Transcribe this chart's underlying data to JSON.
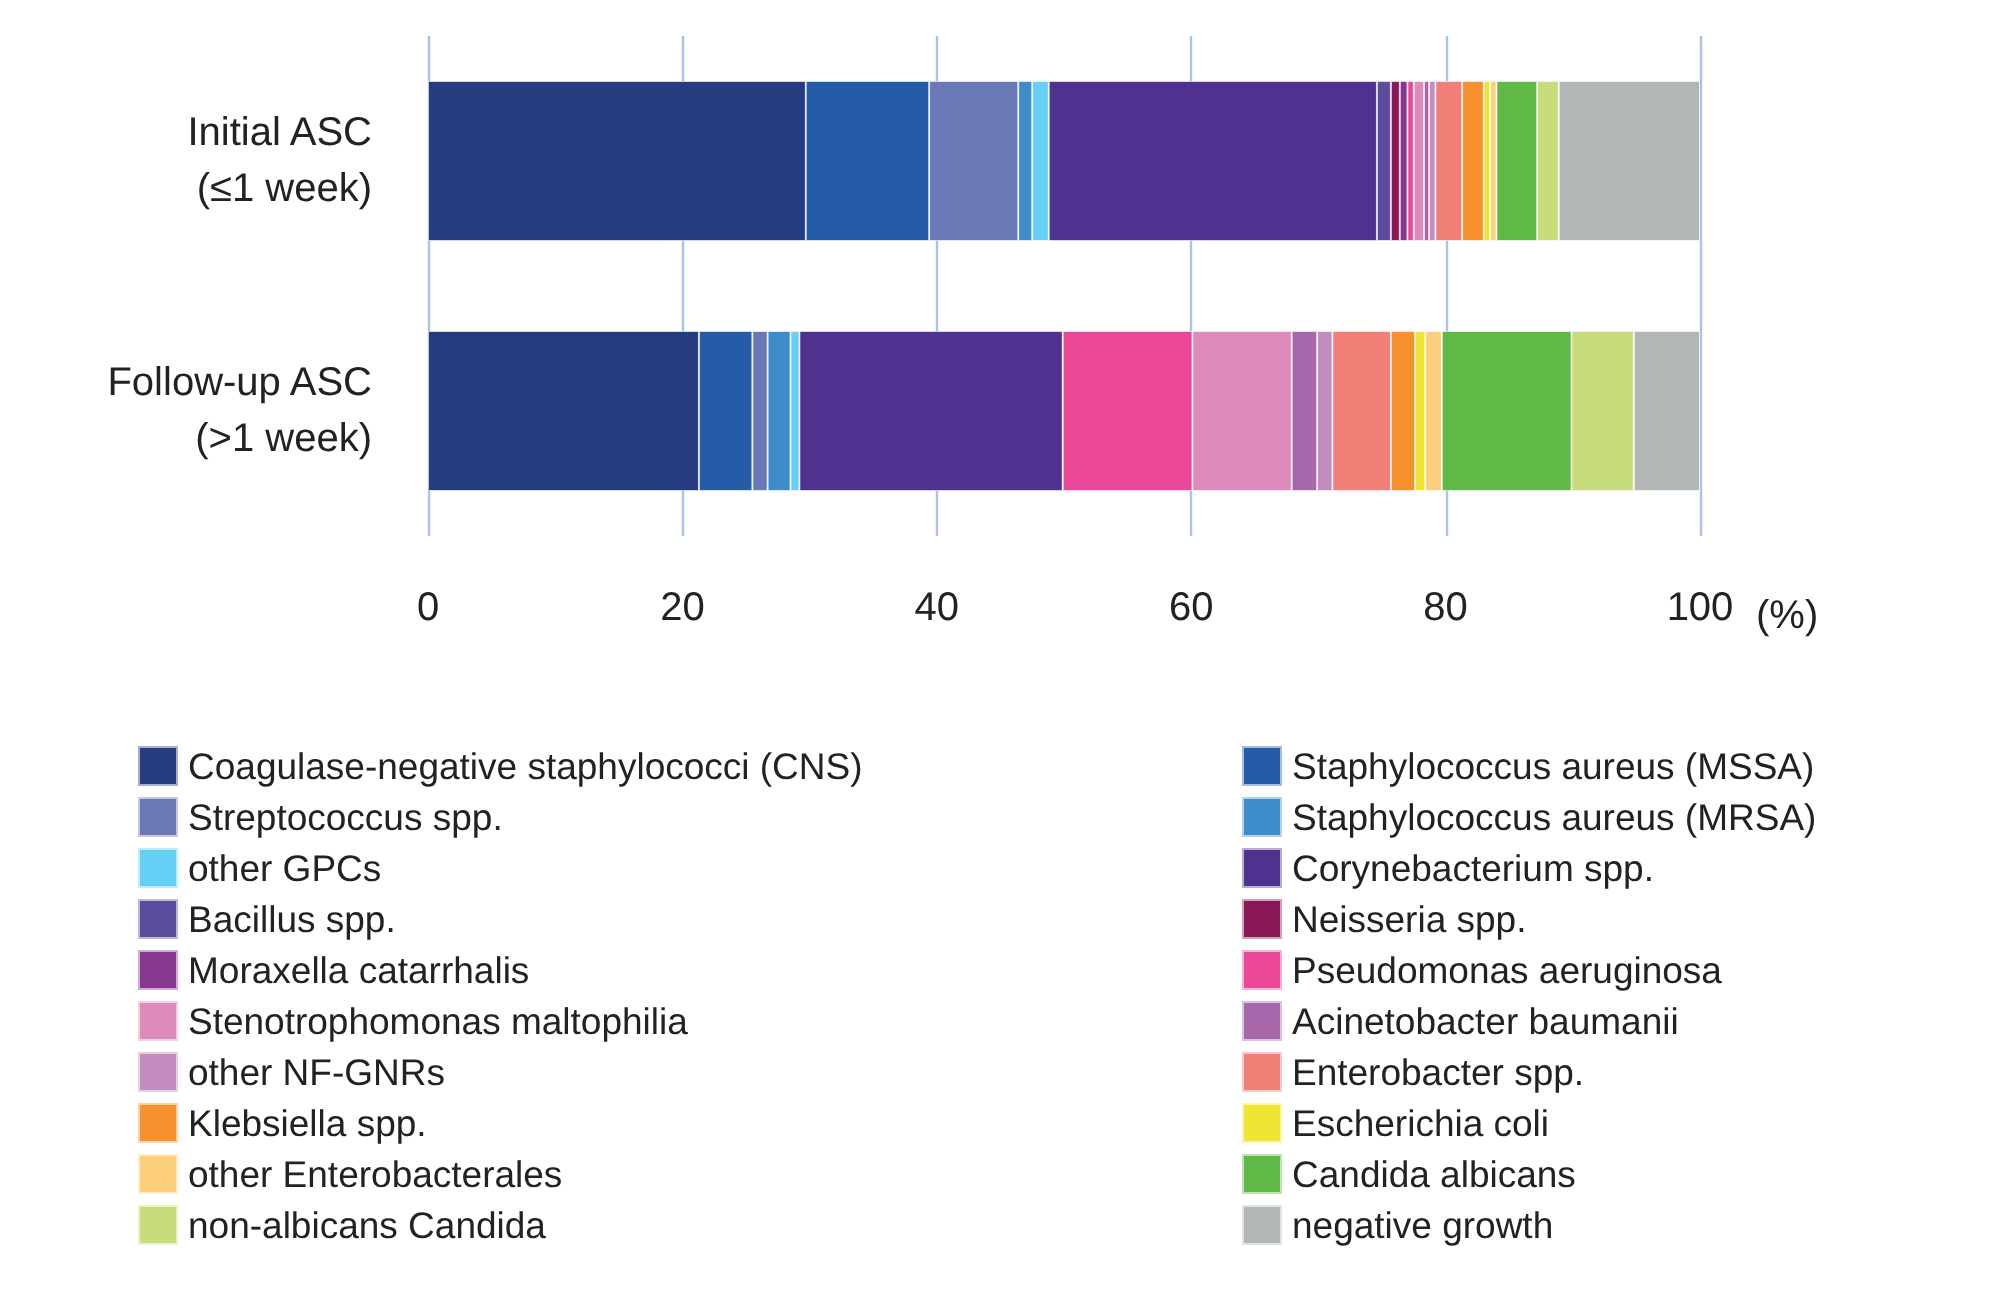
{
  "chart_data": {
    "type": "bar",
    "orientation": "horizontal",
    "stacked": true,
    "categories": [
      "Initial ASC\n(≤1 week)",
      "Follow-up ASC\n(>1 week)"
    ],
    "xlabel": "(%)",
    "xlim": [
      0,
      100
    ],
    "xticks": [
      0,
      20,
      40,
      60,
      80,
      100
    ],
    "grid": "x",
    "legend": "bottom",
    "series": [
      {
        "name": "Coagulase-negative staphylococci (CNS)",
        "color": "#253c80",
        "values": [
          29.7,
          21.3
        ]
      },
      {
        "name": "Staphylococcus aureus (MSSA)",
        "color": "#255ca8",
        "values": [
          9.7,
          4.2
        ]
      },
      {
        "name": "Streptococcus spp.",
        "color": "#6a78b8",
        "values": [
          7.0,
          1.2
        ]
      },
      {
        "name": "Staphylococcus aureus (MRSA)",
        "color": "#3f8ccb",
        "values": [
          1.1,
          1.8
        ]
      },
      {
        "name": "other GPCs",
        "color": "#66cff5",
        "values": [
          1.3,
          0.7
        ]
      },
      {
        "name": "Corynebacterium spp.",
        "color": "#4f3290",
        "values": [
          25.8,
          20.7
        ]
      },
      {
        "name": "Bacillus spp.",
        "color": "#5c4c9e",
        "values": [
          1.1,
          0
        ]
      },
      {
        "name": "Neisseria spp.",
        "color": "#8a1858",
        "values": [
          0.7,
          0
        ]
      },
      {
        "name": "Moraxella catarrhalis",
        "color": "#86378f",
        "values": [
          0.6,
          0
        ]
      },
      {
        "name": "Pseudomonas aeruginosa",
        "color": "#ec4899",
        "values": [
          0.5,
          10.2
        ]
      },
      {
        "name": "Stenotrophomonas maltophilia",
        "color": "#de8aba",
        "values": [
          0.8,
          7.8
        ]
      },
      {
        "name": "Acinetobacter baumanii",
        "color": "#a767ab",
        "values": [
          0.4,
          2.0
        ]
      },
      {
        "name": "other NF-GNRs",
        "color": "#c48bbf",
        "values": [
          0.5,
          1.2
        ]
      },
      {
        "name": "Enterobacter spp.",
        "color": "#f27e78",
        "values": [
          2.1,
          4.6
        ]
      },
      {
        "name": "Klebsiella spp.",
        "color": "#f6912e",
        "values": [
          1.7,
          1.9
        ]
      },
      {
        "name": "Escherichia coli",
        "color": "#f0e532",
        "values": [
          0.5,
          0.8
        ]
      },
      {
        "name": "other Enterobacterales",
        "color": "#fdcf7d",
        "values": [
          0.5,
          1.3
        ]
      },
      {
        "name": "Candida albicans",
        "color": "#60b946",
        "values": [
          3.2,
          10.2
        ]
      },
      {
        "name": "non-albicans Candida",
        "color": "#c7dd7c",
        "values": [
          1.7,
          4.9
        ]
      },
      {
        "name": "negative growth",
        "color": "#b3b6b7",
        "values": [
          11.1,
          5.2
        ]
      }
    ]
  }
}
